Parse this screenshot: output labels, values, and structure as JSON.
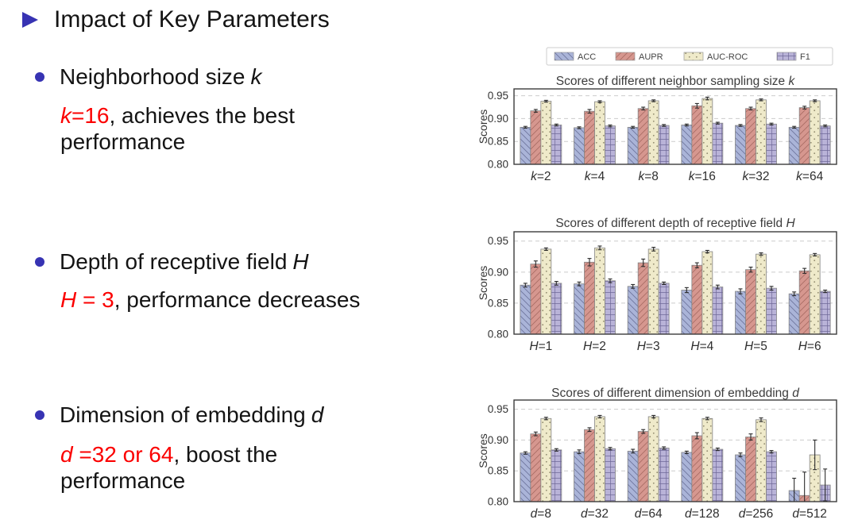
{
  "slide": {
    "title": "Impact of Key Parameters",
    "colors": {
      "accent_blue": "#3733b3",
      "highlight_red": "#fb0000"
    },
    "bullets": [
      {
        "head": "Neighborhood size",
        "head_var": "k",
        "note_var": "k",
        "note_red": "=16",
        "note_black": ", achieves the best",
        "note_line2": "performance"
      },
      {
        "head": "Depth of receptive field",
        "head_var": "H",
        "note_var": "H",
        "note_red": " = 3",
        "note_black": ", performance decreases",
        "note_line2": ""
      },
      {
        "head": "Dimension of embedding",
        "head_var": "d",
        "note_var": "d",
        "note_red": " =32 or 64",
        "note_black": ", boost the",
        "note_line2": "performance"
      }
    ]
  },
  "chart_data": [
    {
      "type": "bar",
      "title": "Scores of different neighbor sampling size",
      "title_var": "k",
      "ylabel": "Scores",
      "ylim": [
        0.8,
        0.965
      ],
      "yticks": [
        0.8,
        0.85,
        0.9,
        0.95
      ],
      "grid": "dashed-horizontal",
      "legend": true,
      "legend_position": "top",
      "legend_labels": [
        "ACC",
        "AUPR",
        "AUC-ROC",
        "F1"
      ],
      "categories": [
        "k=2",
        "k=4",
        "k=8",
        "k=16",
        "k=32",
        "k=64"
      ],
      "series": [
        {
          "name": "ACC",
          "color": "#aab4d8",
          "hatch": "backslash",
          "hatch_color": "#6d749c",
          "values": [
            0.881,
            0.88,
            0.881,
            0.886,
            0.885,
            0.881
          ],
          "errors": [
            0.002,
            0.002,
            0.002,
            0.002,
            0.002,
            0.002
          ]
        },
        {
          "name": "AUPR",
          "color": "#d6978f",
          "hatch": "slash",
          "hatch_color": "#a86b63",
          "values": [
            0.917,
            0.916,
            0.922,
            0.928,
            0.922,
            0.924
          ],
          "errors": [
            0.003,
            0.004,
            0.003,
            0.005,
            0.003,
            0.003
          ]
        },
        {
          "name": "AUC-ROC",
          "color": "#efeaca",
          "hatch": "dots",
          "hatch_color": "#908a6d",
          "values": [
            0.938,
            0.937,
            0.939,
            0.944,
            0.941,
            0.939
          ],
          "errors": [
            0.002,
            0.002,
            0.002,
            0.003,
            0.002,
            0.002
          ]
        },
        {
          "name": "F1",
          "color": "#b9b3d8",
          "hatch": "grid",
          "hatch_color": "#6f6898",
          "values": [
            0.886,
            0.884,
            0.885,
            0.89,
            0.888,
            0.884
          ],
          "errors": [
            0.002,
            0.002,
            0.002,
            0.002,
            0.002,
            0.002
          ]
        }
      ]
    },
    {
      "type": "bar",
      "title": "Scores of different depth of receptive field",
      "title_var": "H",
      "ylabel": "Scores",
      "ylim": [
        0.8,
        0.965
      ],
      "yticks": [
        0.8,
        0.85,
        0.9,
        0.95
      ],
      "grid": "dashed-horizontal",
      "legend": false,
      "categories": [
        "H=1",
        "H=2",
        "H=3",
        "H=4",
        "H=5",
        "H=6"
      ],
      "series": [
        {
          "name": "ACC",
          "color": "#aab4d8",
          "hatch": "backslash",
          "hatch_color": "#6d749c",
          "values": [
            0.879,
            0.881,
            0.877,
            0.871,
            0.869,
            0.865
          ],
          "errors": [
            0.003,
            0.003,
            0.003,
            0.004,
            0.004,
            0.003
          ]
        },
        {
          "name": "AUPR",
          "color": "#d6978f",
          "hatch": "slash",
          "hatch_color": "#a86b63",
          "values": [
            0.913,
            0.916,
            0.915,
            0.911,
            0.904,
            0.902
          ],
          "errors": [
            0.005,
            0.006,
            0.006,
            0.004,
            0.004,
            0.004
          ]
        },
        {
          "name": "AUC-ROC",
          "color": "#efeaca",
          "hatch": "dots",
          "hatch_color": "#908a6d",
          "values": [
            0.937,
            0.939,
            0.937,
            0.933,
            0.929,
            0.928
          ],
          "errors": [
            0.002,
            0.003,
            0.003,
            0.002,
            0.002,
            0.002
          ]
        },
        {
          "name": "F1",
          "color": "#b9b3d8",
          "hatch": "grid",
          "hatch_color": "#6f6898",
          "values": [
            0.882,
            0.886,
            0.882,
            0.876,
            0.874,
            0.869
          ],
          "errors": [
            0.003,
            0.003,
            0.002,
            0.003,
            0.003,
            0.002
          ]
        }
      ]
    },
    {
      "type": "bar",
      "title": "Scores of different dimension of embedding",
      "title_var": "d",
      "ylabel": "Scores",
      "ylim": [
        0.8,
        0.965
      ],
      "yticks": [
        0.8,
        0.85,
        0.9,
        0.95
      ],
      "grid": "dashed-horizontal",
      "legend": false,
      "categories": [
        "d=8",
        "d=32",
        "d=64",
        "d=128",
        "d=256",
        "d=512"
      ],
      "series": [
        {
          "name": "ACC",
          "color": "#aab4d8",
          "hatch": "backslash",
          "hatch_color": "#6d749c",
          "values": [
            0.879,
            0.881,
            0.882,
            0.88,
            0.876,
            0.818
          ],
          "errors": [
            0.002,
            0.003,
            0.003,
            0.002,
            0.003,
            0.02
          ]
        },
        {
          "name": "AUPR",
          "color": "#d6978f",
          "hatch": "slash",
          "hatch_color": "#a86b63",
          "values": [
            0.91,
            0.917,
            0.914,
            0.907,
            0.905,
            0.81
          ],
          "errors": [
            0.003,
            0.003,
            0.003,
            0.005,
            0.005,
            0.038
          ]
        },
        {
          "name": "AUC-ROC",
          "color": "#efeaca",
          "hatch": "dots",
          "hatch_color": "#908a6d",
          "values": [
            0.935,
            0.938,
            0.938,
            0.935,
            0.933,
            0.876
          ],
          "errors": [
            0.002,
            0.002,
            0.002,
            0.002,
            0.003,
            0.024
          ]
        },
        {
          "name": "F1",
          "color": "#b9b3d8",
          "hatch": "grid",
          "hatch_color": "#6f6898",
          "values": [
            0.884,
            0.886,
            0.887,
            0.885,
            0.881,
            0.827
          ],
          "errors": [
            0.002,
            0.002,
            0.002,
            0.002,
            0.002,
            0.026
          ]
        }
      ]
    }
  ]
}
